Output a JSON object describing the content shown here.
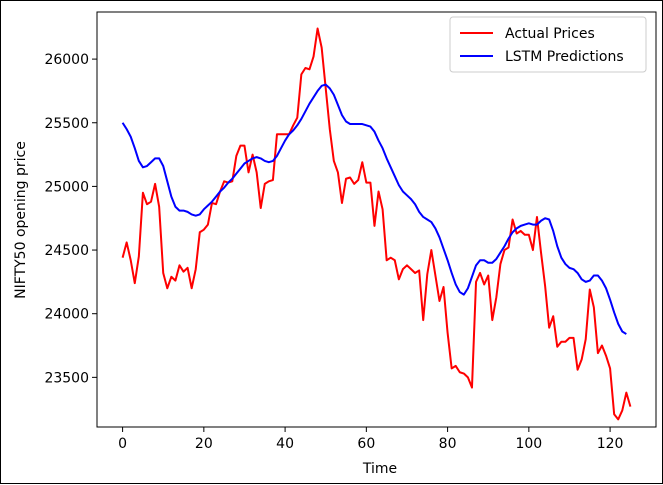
{
  "chart_data": {
    "type": "line",
    "title": "",
    "xlabel": "Time",
    "ylabel": "NIFTY50 opening price",
    "xlim": [
      -6.3,
      131.3
    ],
    "ylim": [
      23110,
      26370
    ],
    "xticks": [
      0,
      20,
      40,
      60,
      80,
      100,
      120
    ],
    "yticks": [
      23500,
      24000,
      24500,
      25000,
      25500,
      26000
    ],
    "grid": false,
    "legend": "top-right",
    "colors": {
      "actual": "#ff0000",
      "predicted": "#0000ff"
    },
    "series": [
      {
        "name": "Actual Prices",
        "key": "actual",
        "values": [
          24440,
          24560,
          24420,
          24240,
          24450,
          24950,
          24860,
          24880,
          25020,
          24840,
          24320,
          24200,
          24290,
          24260,
          24380,
          24330,
          24360,
          24200,
          24350,
          24640,
          24660,
          24700,
          24870,
          24860,
          24960,
          25040,
          25030,
          25040,
          25240,
          25320,
          25320,
          25110,
          25250,
          25110,
          24830,
          25020,
          25040,
          25050,
          25410,
          25410,
          25410,
          25410,
          25480,
          25540,
          25880,
          25930,
          25920,
          26020,
          26240,
          26090,
          25770,
          25450,
          25200,
          25110,
          24870,
          25060,
          25070,
          25020,
          25050,
          25190,
          25030,
          25030,
          24690,
          24960,
          24820,
          24420,
          24440,
          24420,
          24270,
          24350,
          24380,
          24350,
          24320,
          24340,
          23950,
          24310,
          24500,
          24300,
          24100,
          24210,
          23850,
          23570,
          23590,
          23540,
          23530,
          23500,
          23420,
          24250,
          24320,
          24230,
          24300,
          23950,
          24130,
          24390,
          24500,
          24520,
          24740,
          24630,
          24650,
          24620,
          24620,
          24500,
          24760,
          24480,
          24220,
          23890,
          23980,
          23740,
          23780,
          23780,
          23810,
          23810,
          23560,
          23640,
          23800,
          24190,
          24050,
          23690,
          23750,
          23670,
          23570,
          23210,
          23170,
          23240,
          23380,
          23270
        ]
      },
      {
        "name": "LSTM Predictions",
        "key": "predicted",
        "values": [
          25500,
          25450,
          25390,
          25300,
          25200,
          25150,
          25160,
          25190,
          25220,
          25220,
          25160,
          25040,
          24920,
          24840,
          24810,
          24810,
          24800,
          24780,
          24770,
          24780,
          24820,
          24850,
          24880,
          24920,
          24960,
          24990,
          25030,
          25060,
          25100,
          25140,
          25180,
          25200,
          25220,
          25230,
          25220,
          25200,
          25190,
          25200,
          25240,
          25300,
          25360,
          25410,
          25440,
          25480,
          25530,
          25590,
          25650,
          25700,
          25750,
          25790,
          25800,
          25770,
          25720,
          25640,
          25560,
          25510,
          25490,
          25490,
          25490,
          25490,
          25480,
          25470,
          25430,
          25360,
          25300,
          25220,
          25150,
          25080,
          25010,
          24960,
          24930,
          24900,
          24860,
          24800,
          24760,
          24740,
          24720,
          24670,
          24600,
          24510,
          24420,
          24320,
          24230,
          24170,
          24150,
          24200,
          24290,
          24380,
          24420,
          24420,
          24400,
          24400,
          24430,
          24480,
          24530,
          24590,
          24640,
          24670,
          24690,
          24700,
          24710,
          24700,
          24700,
          24730,
          24750,
          24740,
          24650,
          24530,
          24440,
          24390,
          24360,
          24350,
          24320,
          24270,
          24250,
          24260,
          24300,
          24300,
          24260,
          24200,
          24110,
          24010,
          23920,
          23860,
          23840
        ]
      }
    ]
  }
}
